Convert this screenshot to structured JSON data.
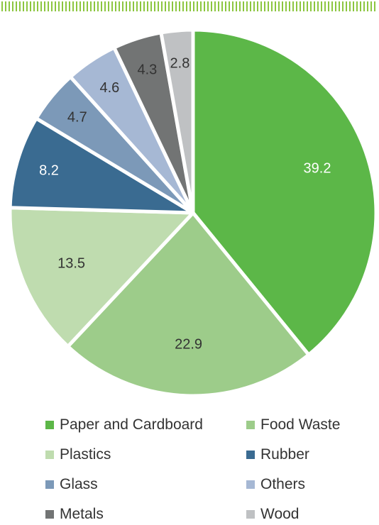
{
  "chart_data": {
    "type": "pie",
    "title": "",
    "categories": [
      "Paper and Cardboard",
      "Food Waste",
      "Plastics",
      "Rubber",
      "Glass",
      "Others",
      "Metals",
      "Wood"
    ],
    "values": [
      39.2,
      22.9,
      13.5,
      8.2,
      4.7,
      4.6,
      4.3,
      2.8
    ],
    "value_labels": [
      "39.2",
      "22.9",
      "13.5",
      "8.2",
      "4.7",
      "4.6",
      "4.3",
      "2.8"
    ],
    "colors": [
      "#5cb748",
      "#9dcc8a",
      "#bfdcaf",
      "#3a6b91",
      "#7c99b8",
      "#a6b8d4",
      "#727474",
      "#bfc1c3"
    ],
    "label_colors": [
      "#ffffff",
      "#333333",
      "#333333",
      "#ffffff",
      "#333333",
      "#333333",
      "#333333",
      "#333333"
    ],
    "start_angle_deg": 0,
    "direction": "clockwise",
    "legend_position": "bottom",
    "legend_columns": 2
  },
  "decor": {
    "stripe_color": "#8cc63f"
  }
}
